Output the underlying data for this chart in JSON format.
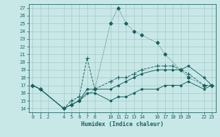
{
  "xlabel": "Humidex (Indice chaleur)",
  "bg_color": "#c8e8e8",
  "grid_color": "#a8c8c8",
  "line_color": "#1a6060",
  "xlim": [
    -0.5,
    23.5
  ],
  "ylim": [
    13.5,
    27.5
  ],
  "xticks": [
    0,
    1,
    2,
    4,
    5,
    6,
    7,
    8,
    10,
    11,
    12,
    13,
    14,
    16,
    17,
    18,
    19,
    20,
    22,
    23
  ],
  "yticks": [
    14,
    15,
    16,
    17,
    18,
    19,
    20,
    21,
    22,
    23,
    24,
    25,
    26,
    27
  ],
  "series": [
    {
      "x": [
        0,
        1,
        4,
        5,
        6,
        8,
        10,
        11,
        12,
        13,
        14,
        16,
        17,
        19,
        20,
        22,
        23
      ],
      "y": [
        17,
        16.5,
        14,
        14.5,
        15,
        16.5,
        25,
        27,
        25,
        24,
        23.5,
        22.5,
        21,
        19,
        18,
        17,
        17
      ],
      "linestyle": "dotted",
      "marker": "D",
      "markersize": 2.5
    },
    {
      "x": [
        0,
        1,
        4,
        5,
        6,
        7,
        8,
        10,
        11,
        12,
        13,
        14,
        16,
        17,
        18,
        19,
        20,
        22,
        23
      ],
      "y": [
        17,
        16.5,
        14,
        15,
        15.5,
        20.5,
        16.5,
        17.5,
        18,
        18,
        18.5,
        19,
        19.5,
        19.5,
        19.5,
        19,
        18.5,
        17,
        17
      ],
      "linestyle": "--",
      "marker": "+",
      "markersize": 4
    },
    {
      "x": [
        0,
        1,
        4,
        5,
        6,
        7,
        8,
        10,
        11,
        12,
        13,
        14,
        16,
        17,
        18,
        19,
        20,
        22,
        23
      ],
      "y": [
        17,
        16.5,
        14,
        14.5,
        15,
        16.5,
        16.5,
        16.5,
        17,
        17.5,
        18,
        18.5,
        19,
        19,
        19,
        19,
        19.5,
        18,
        17
      ],
      "linestyle": "-",
      "marker": "o",
      "markersize": 2
    },
    {
      "x": [
        0,
        1,
        4,
        5,
        6,
        7,
        8,
        10,
        11,
        12,
        13,
        14,
        16,
        17,
        18,
        19,
        20,
        22,
        23
      ],
      "y": [
        17,
        16.5,
        14,
        14.5,
        15,
        16,
        16,
        15,
        15.5,
        15.5,
        16,
        16.5,
        16.5,
        17,
        17,
        17,
        17.5,
        16.5,
        17
      ],
      "linestyle": "-",
      "marker": "o",
      "markersize": 2
    }
  ]
}
